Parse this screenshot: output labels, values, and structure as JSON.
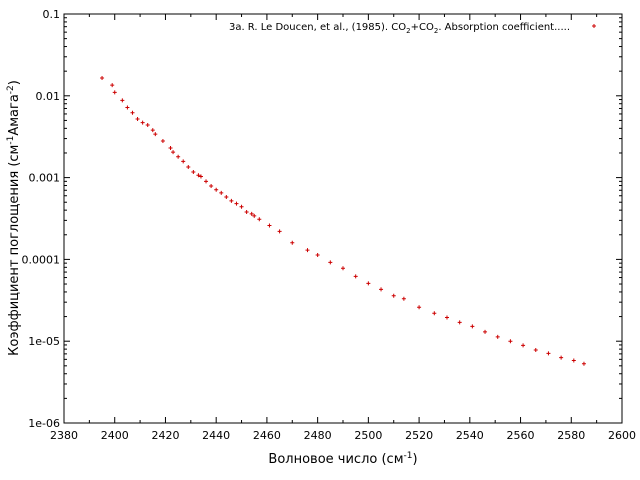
{
  "chart_data": {
    "type": "scatter",
    "xlabel": {
      "text": "Волновое число (см",
      "sup": "-1",
      "close": ")"
    },
    "ylabel": {
      "pre": "Коэффициент поглощения (см",
      "sup1": "-1",
      "mid": "Амага",
      "sup2": "-2",
      "close": ")"
    },
    "xlim": [
      2380,
      2600
    ],
    "ylim": [
      1e-06,
      0.1
    ],
    "yscale": "log",
    "grid": false,
    "legend_position": "top-right",
    "x_ticks": [
      "2380",
      "2400",
      "2420",
      "2440",
      "2460",
      "2480",
      "2500",
      "2520",
      "2540",
      "2560",
      "2580",
      "2600"
    ],
    "y_ticks": [
      "1e-06",
      "1e-05",
      "0.0001",
      "0.001",
      "0.01",
      "0.1"
    ],
    "series": [
      {
        "legend": {
          "p1": "3a. R. Le Doucen, et al., (1985). CO",
          "s1": "2",
          "p2": "+CO",
          "s2": "2",
          "p3": ". Absorption coefficient....."
        },
        "color": "#cc0000",
        "marker": "plus",
        "points": [
          [
            2395,
            0.0165
          ],
          [
            2399,
            0.0135
          ],
          [
            2400,
            0.011
          ],
          [
            2403,
            0.0088
          ],
          [
            2405,
            0.0072
          ],
          [
            2407,
            0.0062
          ],
          [
            2409,
            0.0052
          ],
          [
            2411,
            0.0047
          ],
          [
            2413,
            0.0044
          ],
          [
            2415,
            0.0038
          ],
          [
            2416,
            0.0034
          ],
          [
            2419,
            0.0028
          ],
          [
            2422,
            0.0023
          ],
          [
            2423,
            0.00205
          ],
          [
            2425,
            0.0018
          ],
          [
            2427,
            0.00158
          ],
          [
            2429,
            0.00135
          ],
          [
            2431,
            0.00117
          ],
          [
            2433,
            0.00107
          ],
          [
            2434,
            0.00103
          ],
          [
            2436,
            0.0009
          ],
          [
            2438,
            0.00079
          ],
          [
            2440,
            0.00071
          ],
          [
            2442,
            0.00065
          ],
          [
            2444,
            0.00058
          ],
          [
            2446,
            0.00052
          ],
          [
            2448,
            0.00048
          ],
          [
            2450,
            0.00044
          ],
          [
            2452,
            0.00038
          ],
          [
            2454,
            0.00036
          ],
          [
            2455,
            0.00034
          ],
          [
            2457,
            0.00031
          ],
          [
            2461,
            0.00026
          ],
          [
            2465,
            0.00022
          ],
          [
            2470,
            0.00016
          ],
          [
            2476,
            0.00013
          ],
          [
            2480,
            0.000113
          ],
          [
            2485,
            9.2e-05
          ],
          [
            2490,
            7.8e-05
          ],
          [
            2495,
            6.2e-05
          ],
          [
            2500,
            5.1e-05
          ],
          [
            2505,
            4.3e-05
          ],
          [
            2510,
            3.6e-05
          ],
          [
            2514,
            3.3e-05
          ],
          [
            2520,
            2.6e-05
          ],
          [
            2526,
            2.2e-05
          ],
          [
            2531,
            1.95e-05
          ],
          [
            2536,
            1.7e-05
          ],
          [
            2541,
            1.52e-05
          ],
          [
            2546,
            1.3e-05
          ],
          [
            2551,
            1.13e-05
          ],
          [
            2556,
            1e-05
          ],
          [
            2561,
            8.9e-06
          ],
          [
            2566,
            7.8e-06
          ],
          [
            2571,
            7.1e-06
          ],
          [
            2576,
            6.3e-06
          ],
          [
            2581,
            5.8e-06
          ],
          [
            2585,
            5.3e-06
          ]
        ]
      }
    ]
  }
}
